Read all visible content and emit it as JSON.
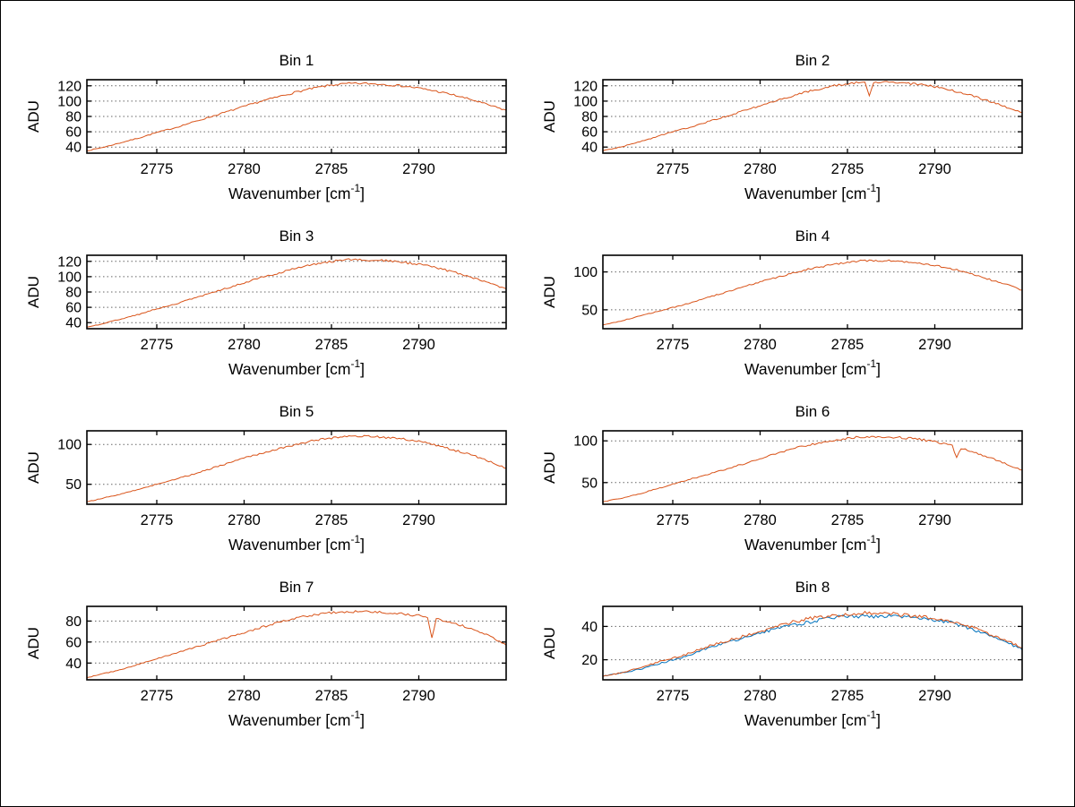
{
  "figure": {
    "background": "#ffffff",
    "border_color": "#000000"
  },
  "colors": {
    "axis": "#000000",
    "grid": "#666666",
    "line_orange": "#d95319",
    "line_blue": "#0072bd"
  },
  "chart_data": {
    "type": "line",
    "title": "",
    "xlabel_base": "Wavenumber [cm",
    "xlabel_sup": "-1",
    "xlabel_close": "]",
    "ylabel": "ADU",
    "grid": "horizontal-dotted",
    "legend_position": "none",
    "xlim": [
      2771,
      2795
    ],
    "xticks": [
      2775,
      2780,
      2785,
      2790
    ],
    "x": [
      2771,
      2772,
      2773,
      2774,
      2775,
      2776,
      2777,
      2778,
      2779,
      2780,
      2781,
      2782,
      2783,
      2784,
      2785,
      2786,
      2787,
      2788,
      2789,
      2790,
      2791,
      2792,
      2793,
      2794,
      2795
    ],
    "subplots": [
      {
        "title": "Bin 1",
        "ylim": [
          32,
          128
        ],
        "yticks": [
          40,
          60,
          80,
          100,
          120
        ],
        "spikes": [],
        "series": [
          {
            "name": "spectrum",
            "color": "#d95319",
            "noise": 1.3,
            "values": [
              35,
              40,
              46,
              52,
              59,
              65,
              72,
              79,
              86,
              93,
              100,
              106,
              112,
              117,
              121,
              123,
              123,
              122,
              120,
              117,
              113,
              108,
              102,
              95,
              88
            ]
          }
        ]
      },
      {
        "title": "Bin 2",
        "ylim": [
          32,
          128
        ],
        "yticks": [
          40,
          60,
          80,
          100,
          120
        ],
        "spikes": [
          {
            "x": 2786.3,
            "y": 107
          }
        ],
        "series": [
          {
            "name": "spectrum",
            "color": "#d95319",
            "noise": 1.3,
            "values": [
              35,
              40,
              46,
              53,
              60,
              66,
              73,
              80,
              87,
              94,
              101,
              108,
              114,
              119,
              123,
              125,
              125,
              124,
              122,
              119,
              114,
              108,
              101,
              93,
              85
            ]
          }
        ]
      },
      {
        "title": "Bin 3",
        "ylim": [
          32,
          128
        ],
        "yticks": [
          40,
          60,
          80,
          100,
          120
        ],
        "spikes": [],
        "series": [
          {
            "name": "spectrum",
            "color": "#d95319",
            "noise": 1.3,
            "values": [
              34,
              39,
              45,
              51,
              58,
              64,
              71,
              78,
              85,
              92,
              99,
              105,
              111,
              116,
              120,
              122,
              122,
              121,
              119,
              116,
              112,
              106,
              99,
              92,
              84
            ]
          }
        ]
      },
      {
        "title": "Bin 4",
        "ylim": [
          25,
          122
        ],
        "yticks": [
          50,
          100
        ],
        "spikes": [],
        "series": [
          {
            "name": "spectrum",
            "color": "#d95319",
            "noise": 1.2,
            "values": [
              30,
              35,
              41,
              47,
              53,
              59,
              66,
              73,
              80,
              87,
              93,
              99,
              105,
              109,
              113,
              115,
              115,
              114,
              112,
              109,
              104,
              98,
              91,
              84,
              76
            ]
          }
        ]
      },
      {
        "title": "Bin 5",
        "ylim": [
          25,
          117
        ],
        "yticks": [
          50,
          100
        ],
        "spikes": [],
        "series": [
          {
            "name": "spectrum",
            "color": "#d95319",
            "noise": 1.2,
            "values": [
              28,
              33,
              38,
              44,
              50,
              56,
              62,
              69,
              76,
              83,
              89,
              95,
              100,
              105,
              108,
              110,
              110,
              109,
              107,
              104,
              99,
              93,
              87,
              79,
              70
            ]
          }
        ]
      },
      {
        "title": "Bin 6",
        "ylim": [
          24,
          112
        ],
        "yticks": [
          50,
          100
        ],
        "spikes": [
          {
            "x": 2791.3,
            "y": 80
          }
        ],
        "series": [
          {
            "name": "spectrum",
            "color": "#d95319",
            "noise": 1.2,
            "values": [
              27,
              31,
              36,
              42,
              48,
              54,
              60,
              66,
              72,
              79,
              85,
              91,
              96,
              100,
              103,
              105,
              105,
              104,
              102,
              99,
              94,
              88,
              81,
              73,
              65
            ]
          }
        ]
      },
      {
        "title": "Bin 7",
        "ylim": [
          24,
          94
        ],
        "yticks": [
          40,
          60,
          80
        ],
        "spikes": [
          {
            "x": 2790.8,
            "y": 64
          }
        ],
        "series": [
          {
            "name": "spectrum",
            "color": "#d95319",
            "noise": 1.0,
            "values": [
              26,
              30,
              34,
              39,
              44,
              49,
              54,
              59,
              64,
              69,
              74,
              79,
              83,
              86,
              88,
              89,
              89,
              88,
              87,
              85,
              82,
              78,
              73,
              66,
              57
            ]
          }
        ]
      },
      {
        "title": "Bin 8",
        "ylim": [
          8,
          52
        ],
        "yticks": [
          20,
          40
        ],
        "spikes": [],
        "series": [
          {
            "name": "spectrum-b",
            "color": "#0072bd",
            "noise": 1.0,
            "values": [
              10,
              12,
              14,
              17,
              20,
              23,
              27,
              30,
              33,
              36,
              39,
              41,
              43,
              45,
              46,
              46,
              46,
              46,
              45,
              44,
              42,
              39,
              35,
              31,
              26
            ]
          },
          {
            "name": "spectrum-a",
            "color": "#d95319",
            "noise": 1.0,
            "values": [
              10,
              12,
              15,
              18,
              21,
              24,
              28,
              31,
              34,
              37,
              40,
              43,
              45,
              46,
              47,
              48,
              48,
              47,
              46,
              45,
              43,
              40,
              36,
              32,
              27
            ]
          }
        ]
      }
    ]
  }
}
